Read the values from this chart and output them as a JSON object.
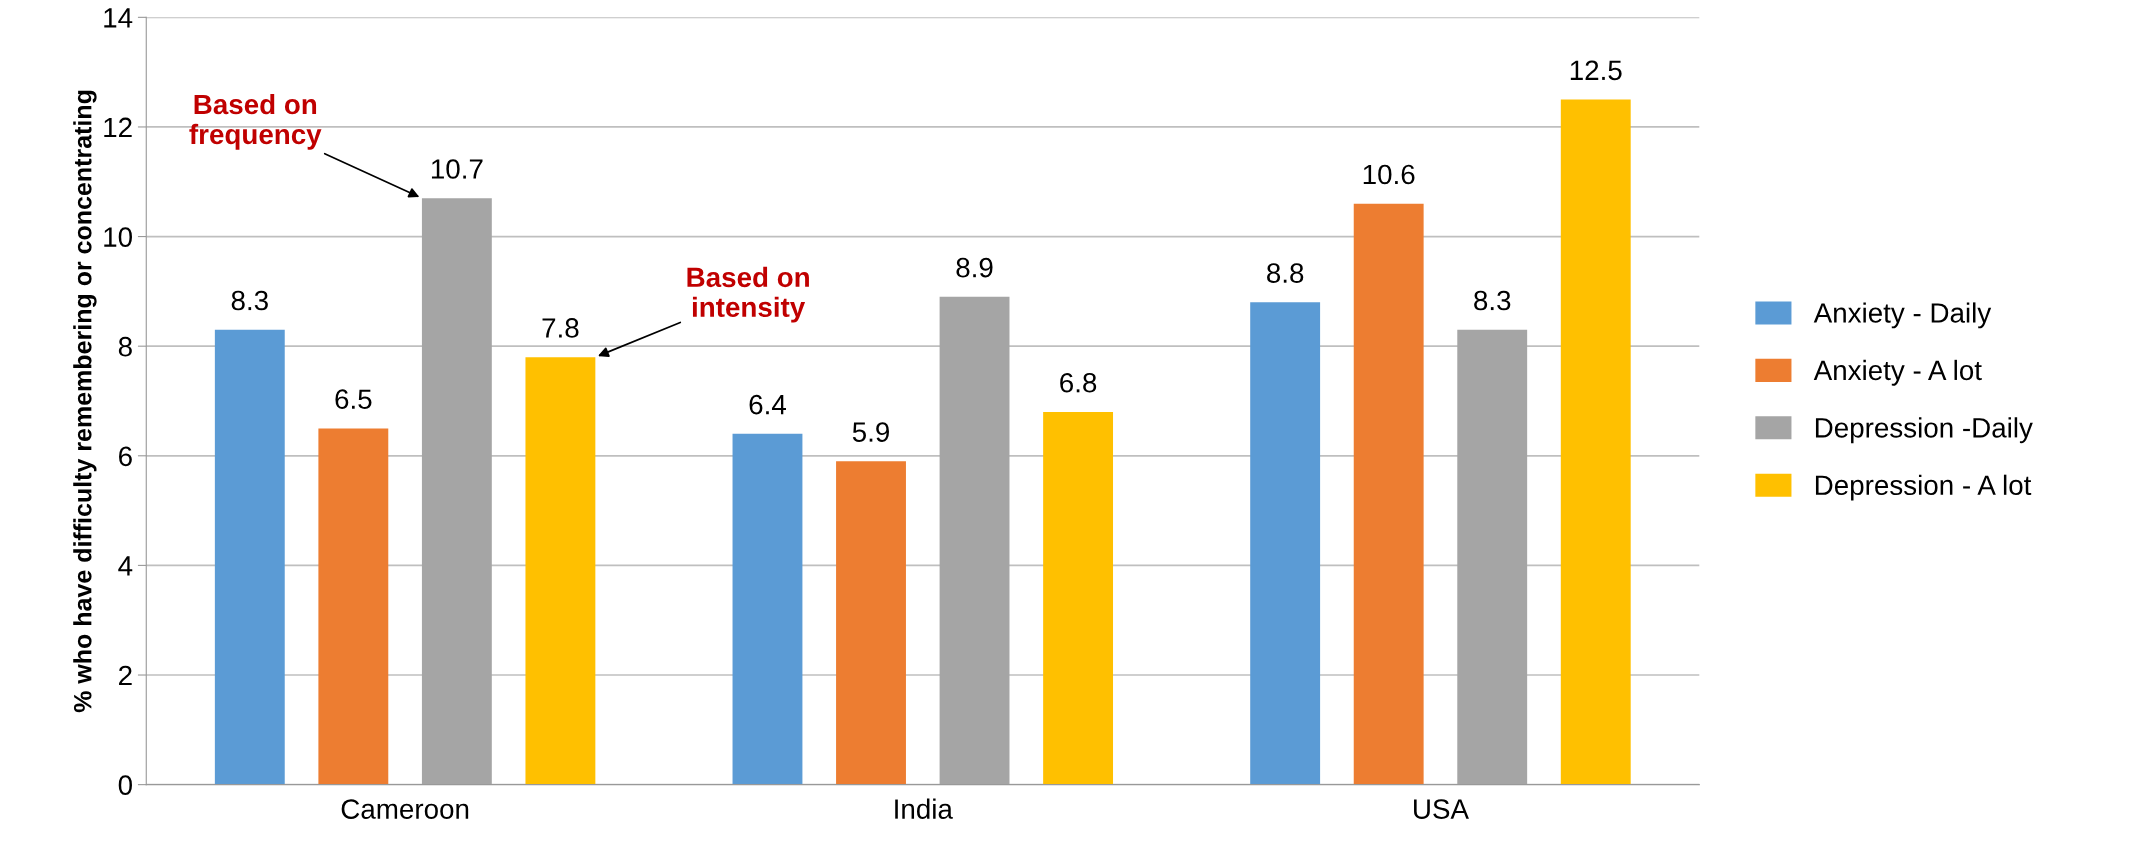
{
  "chart_data": {
    "type": "bar",
    "ylabel": "% who have difficulty remembering or concentrating",
    "categories": [
      "Cameroon",
      "India",
      "USA"
    ],
    "series": [
      {
        "name": "Anxiety - Daily",
        "color": "#5b9bd5",
        "values": [
          8.3,
          6.4,
          8.8
        ]
      },
      {
        "name": "Anxiety - A lot",
        "color": "#ed7d31",
        "values": [
          6.5,
          5.9,
          10.6
        ]
      },
      {
        "name": "Depression -Daily",
        "color": "#a5a5a5",
        "values": [
          10.7,
          8.9,
          8.3
        ]
      },
      {
        "name": "Depression - A lot",
        "color": "#ffc000",
        "values": [
          7.8,
          6.8,
          12.5
        ]
      }
    ],
    "ylim": [
      0,
      14
    ],
    "yticks": [
      0,
      2,
      4,
      6,
      8,
      10,
      12,
      14
    ],
    "grid": "y",
    "legend": "right",
    "data_labels": true,
    "annotations": [
      "Based on\nfrequency",
      "Based on\nintensity"
    ]
  }
}
